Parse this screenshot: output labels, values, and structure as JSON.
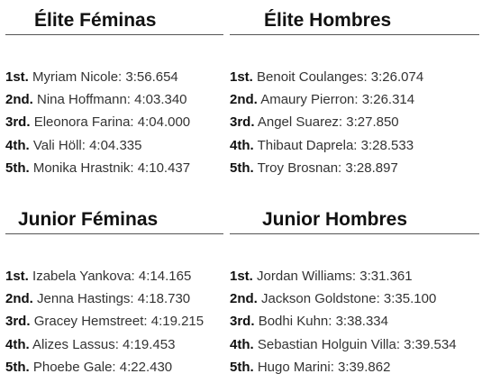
{
  "sections": [
    {
      "title": "Élite Féminas",
      "results": [
        {
          "place": "1st.",
          "entry": "Myriam Nicole: 3:56.654"
        },
        {
          "place": "2nd.",
          "entry": "Nina Hoffmann: 4:03.340"
        },
        {
          "place": "3rd.",
          "entry": "Eleonora Farina: 4:04.000"
        },
        {
          "place": "4th.",
          "entry": "Vali Höll: 4:04.335"
        },
        {
          "place": "5th.",
          "entry": "Monika Hrastnik: 4:10.437"
        }
      ]
    },
    {
      "title": "Élite Hombres",
      "results": [
        {
          "place": "1st.",
          "entry": "Benoit Coulanges: 3:26.074"
        },
        {
          "place": "2nd.",
          "entry": "Amaury Pierron: 3:26.314"
        },
        {
          "place": "3rd.",
          "entry": "Angel Suarez: 3:27.850"
        },
        {
          "place": "4th.",
          "entry": "Thibaut Daprela: 3:28.533"
        },
        {
          "place": "5th.",
          "entry": "Troy Brosnan: 3:28.897"
        }
      ]
    },
    {
      "title": "Junior Féminas",
      "results": [
        {
          "place": "1st.",
          "entry": "Izabela Yankova: 4:14.165"
        },
        {
          "place": "2nd.",
          "entry": "Jenna Hastings: 4:18.730"
        },
        {
          "place": "3rd.",
          "entry": "Gracey Hemstreet: 4:19.215"
        },
        {
          "place": "4th.",
          "entry": "Alizes Lassus: 4:19.453"
        },
        {
          "place": "5th.",
          "entry": "Phoebe Gale: 4:22.430"
        }
      ]
    },
    {
      "title": "Junior Hombres",
      "results": [
        {
          "place": "1st.",
          "entry": "Jordan Williams: 3:31.361"
        },
        {
          "place": "2nd.",
          "entry": "Jackson Goldstone: 3:35.100"
        },
        {
          "place": "3rd.",
          "entry": "Bodhi Kuhn: 3:38.334"
        },
        {
          "place": "4th.",
          "entry": "Sebastian Holguin Villa: 3:39.534"
        },
        {
          "place": "5th.",
          "entry": "Hugo Marini: 3:39.862"
        }
      ]
    }
  ]
}
